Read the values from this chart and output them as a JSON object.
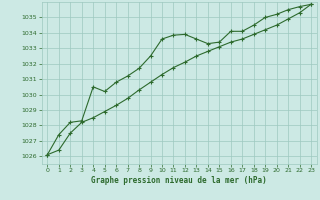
{
  "line1_x": [
    0,
    1,
    2,
    3,
    4,
    5,
    6,
    7,
    8,
    9,
    10,
    11,
    12,
    13,
    14,
    15,
    16,
    17,
    18,
    19,
    20,
    21,
    22,
    23
  ],
  "line1_y": [
    1026.1,
    1027.4,
    1028.2,
    1028.3,
    1030.5,
    1030.2,
    1030.8,
    1031.2,
    1031.7,
    1032.5,
    1033.6,
    1033.85,
    1033.9,
    1033.6,
    1033.3,
    1033.4,
    1034.1,
    1034.1,
    1034.5,
    1035.0,
    1035.2,
    1035.5,
    1035.7,
    1035.85
  ],
  "line2_x": [
    0,
    1,
    2,
    3,
    4,
    5,
    6,
    7,
    8,
    9,
    10,
    11,
    12,
    13,
    14,
    15,
    16,
    17,
    18,
    19,
    20,
    21,
    22,
    23
  ],
  "line2_y": [
    1026.1,
    1026.4,
    1027.5,
    1028.2,
    1028.5,
    1028.9,
    1029.3,
    1029.75,
    1030.3,
    1030.8,
    1031.3,
    1031.75,
    1032.1,
    1032.5,
    1032.8,
    1033.1,
    1033.4,
    1033.6,
    1033.9,
    1034.2,
    1034.5,
    1034.9,
    1035.3,
    1035.85
  ],
  "line_color": "#2d6a2d",
  "bg_color": "#cce9e4",
  "grid_color": "#9ec8c0",
  "xlabel": "Graphe pression niveau de la mer (hPa)",
  "ylim": [
    1025.5,
    1036.0
  ],
  "xlim": [
    -0.5,
    23.5
  ],
  "yticks": [
    1026,
    1027,
    1028,
    1029,
    1030,
    1031,
    1032,
    1033,
    1034,
    1035
  ],
  "xticks": [
    0,
    1,
    2,
    3,
    4,
    5,
    6,
    7,
    8,
    9,
    10,
    11,
    12,
    13,
    14,
    15,
    16,
    17,
    18,
    19,
    20,
    21,
    22,
    23
  ]
}
